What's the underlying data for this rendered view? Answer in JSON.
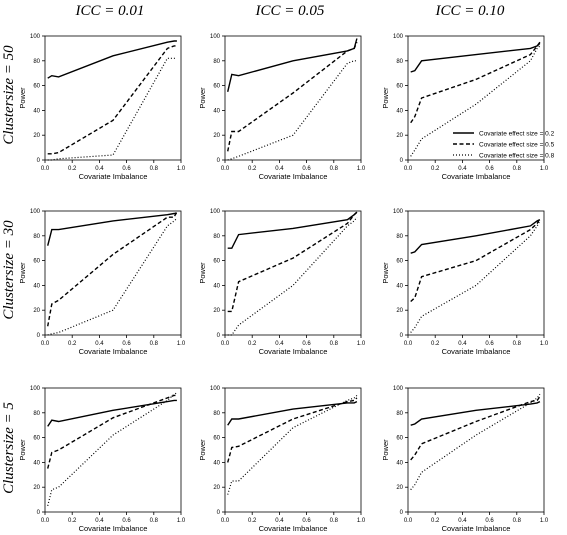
{
  "column_headers": [
    "ICC = 0.01",
    "ICC = 0.05",
    "ICC = 0.10"
  ],
  "row_headers": [
    "Clustersize = 50",
    "Clustersize = 30",
    "Clustersize = 5"
  ],
  "legend": {
    "placement": "bottom-right of top-right panel",
    "entries": [
      {
        "label": "Covariate effect size = 0.2",
        "style": "solid"
      },
      {
        "label": "Covariate effect size = 0.5",
        "style": "dashed"
      },
      {
        "label": "Covariate effect size = 0.8",
        "style": "dotted"
      }
    ]
  },
  "chart_data": [
    {
      "type": "line",
      "row": 0,
      "col": 0,
      "xlabel": "Covariate Imbalance",
      "ylabel": "Power",
      "xlim": [
        0,
        1
      ],
      "ylim": [
        0,
        100
      ],
      "xticks": [
        "0.0",
        "0.2",
        "0.4",
        "0.6",
        "0.8",
        "1.0"
      ],
      "yticks": [
        "0",
        "20",
        "40",
        "60",
        "80",
        "100"
      ],
      "series": [
        {
          "name": "Covariate effect size = 0.2",
          "x": [
            0.02,
            0.05,
            0.1,
            0.5,
            0.9,
            0.95,
            0.97
          ],
          "y": [
            66,
            68,
            67,
            84,
            95,
            96,
            96
          ]
        },
        {
          "name": "Covariate effect size = 0.5",
          "x": [
            0.02,
            0.05,
            0.1,
            0.5,
            0.9,
            0.95,
            0.97
          ],
          "y": [
            5,
            5,
            6,
            32,
            90,
            92,
            92
          ]
        },
        {
          "name": "Covariate effect size = 0.8",
          "x": [
            0.02,
            0.05,
            0.1,
            0.5,
            0.9,
            0.95,
            0.97
          ],
          "y": [
            0,
            0,
            1,
            4,
            82,
            82,
            82
          ]
        }
      ]
    },
    {
      "type": "line",
      "row": 0,
      "col": 1,
      "xlabel": "Covariate Imbalance",
      "ylabel": "Power",
      "xlim": [
        0,
        1
      ],
      "ylim": [
        0,
        100
      ],
      "xticks": [
        "0.0",
        "0.2",
        "0.4",
        "0.6",
        "0.8",
        "1.0"
      ],
      "yticks": [
        "0",
        "20",
        "40",
        "60",
        "80",
        "100"
      ],
      "series": [
        {
          "name": "Covariate effect size = 0.2",
          "x": [
            0.02,
            0.05,
            0.1,
            0.5,
            0.9,
            0.95,
            0.97
          ],
          "y": [
            55,
            69,
            68,
            80,
            88,
            90,
            98
          ]
        },
        {
          "name": "Covariate effect size = 0.5",
          "x": [
            0.02,
            0.05,
            0.1,
            0.5,
            0.9,
            0.95,
            0.97
          ],
          "y": [
            7,
            23,
            23,
            54,
            88,
            90,
            95
          ]
        },
        {
          "name": "Covariate effect size = 0.8",
          "x": [
            0.02,
            0.05,
            0.1,
            0.5,
            0.9,
            0.95,
            0.97
          ],
          "y": [
            0,
            1,
            3,
            20,
            78,
            80,
            80
          ]
        }
      ]
    },
    {
      "type": "line",
      "row": 0,
      "col": 2,
      "xlabel": "Covariate Imbalance",
      "ylabel": "Power",
      "xlim": [
        0,
        1
      ],
      "ylim": [
        0,
        100
      ],
      "xticks": [
        "0.0",
        "0.2",
        "0.4",
        "0.6",
        "0.8",
        "1.0"
      ],
      "yticks": [
        "0",
        "20",
        "40",
        "60",
        "80",
        "100"
      ],
      "series": [
        {
          "name": "Covariate effect size = 0.2",
          "x": [
            0.02,
            0.05,
            0.1,
            0.5,
            0.9,
            0.95,
            0.97
          ],
          "y": [
            71,
            72,
            80,
            85,
            90,
            92,
            95
          ]
        },
        {
          "name": "Covariate effect size = 0.5",
          "x": [
            0.02,
            0.05,
            0.1,
            0.5,
            0.9,
            0.95,
            0.97
          ],
          "y": [
            30,
            35,
            50,
            65,
            85,
            92,
            94
          ]
        },
        {
          "name": "Covariate effect size = 0.8",
          "x": [
            0.02,
            0.05,
            0.1,
            0.5,
            0.9,
            0.95,
            0.97
          ],
          "y": [
            3,
            8,
            17,
            45,
            80,
            90,
            92
          ]
        }
      ]
    },
    {
      "type": "line",
      "row": 1,
      "col": 0,
      "xlabel": "Covariate Imbalance",
      "ylabel": "Power",
      "xlim": [
        0,
        1
      ],
      "ylim": [
        0,
        100
      ],
      "xticks": [
        "0.0",
        "0.2",
        "0.4",
        "0.6",
        "0.8",
        "1.0"
      ],
      "yticks": [
        "0",
        "20",
        "40",
        "60",
        "80",
        "100"
      ],
      "series": [
        {
          "name": "Covariate effect size = 0.2",
          "x": [
            0.02,
            0.05,
            0.1,
            0.5,
            0.9,
            0.95,
            0.97
          ],
          "y": [
            72,
            85,
            85,
            92,
            97,
            98,
            98
          ]
        },
        {
          "name": "Covariate effect size = 0.5",
          "x": [
            0.02,
            0.05,
            0.1,
            0.5,
            0.9,
            0.95,
            0.97
          ],
          "y": [
            7,
            25,
            28,
            65,
            95,
            95,
            100
          ]
        },
        {
          "name": "Covariate effect size = 0.8",
          "x": [
            0.02,
            0.05,
            0.1,
            0.5,
            0.9,
            0.95,
            0.97
          ],
          "y": [
            0,
            1,
            2,
            20,
            88,
            92,
            94
          ]
        }
      ]
    },
    {
      "type": "line",
      "row": 1,
      "col": 1,
      "xlabel": "Covariate Imbalance",
      "ylabel": "Power",
      "xlim": [
        0,
        1
      ],
      "ylim": [
        0,
        100
      ],
      "xticks": [
        "0.0",
        "0.2",
        "0.4",
        "0.6",
        "0.8",
        "1.0"
      ],
      "yticks": [
        "0",
        "20",
        "40",
        "60",
        "80",
        "100"
      ],
      "series": [
        {
          "name": "Covariate effect size = 0.2",
          "x": [
            0.02,
            0.05,
            0.1,
            0.5,
            0.9,
            0.95,
            0.97
          ],
          "y": [
            70,
            70,
            81,
            86,
            93,
            97,
            99
          ]
        },
        {
          "name": "Covariate effect size = 0.5",
          "x": [
            0.02,
            0.05,
            0.1,
            0.5,
            0.9,
            0.95,
            0.97
          ],
          "y": [
            19,
            19,
            43,
            62,
            90,
            97,
            99
          ]
        },
        {
          "name": "Covariate effect size = 0.8",
          "x": [
            0.02,
            0.05,
            0.1,
            0.5,
            0.9,
            0.95,
            0.97
          ],
          "y": [
            0,
            0,
            8,
            40,
            88,
            92,
            95
          ]
        }
      ]
    },
    {
      "type": "line",
      "row": 1,
      "col": 2,
      "xlabel": "Covariate Imbalance",
      "ylabel": "Power",
      "xlim": [
        0,
        1
      ],
      "ylim": [
        0,
        100
      ],
      "xticks": [
        "0.0",
        "0.2",
        "0.4",
        "0.6",
        "0.8",
        "1.0"
      ],
      "yticks": [
        "0",
        "20",
        "40",
        "60",
        "80",
        "100"
      ],
      "series": [
        {
          "name": "Covariate effect size = 0.2",
          "x": [
            0.02,
            0.05,
            0.1,
            0.5,
            0.9,
            0.95,
            0.97
          ],
          "y": [
            66,
            67,
            73,
            80,
            88,
            92,
            93
          ]
        },
        {
          "name": "Covariate effect size = 0.5",
          "x": [
            0.02,
            0.05,
            0.1,
            0.5,
            0.9,
            0.95,
            0.97
          ],
          "y": [
            27,
            30,
            47,
            60,
            85,
            90,
            94
          ]
        },
        {
          "name": "Covariate effect size = 0.8",
          "x": [
            0.02,
            0.05,
            0.1,
            0.5,
            0.9,
            0.95,
            0.97
          ],
          "y": [
            2,
            6,
            15,
            40,
            80,
            88,
            92
          ]
        }
      ]
    },
    {
      "type": "line",
      "row": 2,
      "col": 0,
      "xlabel": "Covariate Imbalance",
      "ylabel": "Power",
      "xlim": [
        0,
        1
      ],
      "ylim": [
        0,
        100
      ],
      "xticks": [
        "0.0",
        "0.2",
        "0.4",
        "0.6",
        "0.8",
        "1.0"
      ],
      "yticks": [
        "0",
        "20",
        "40",
        "60",
        "80",
        "100"
      ],
      "series": [
        {
          "name": "Covariate effect size = 0.2",
          "x": [
            0.02,
            0.05,
            0.1,
            0.5,
            0.9,
            0.95,
            0.97
          ],
          "y": [
            69,
            74,
            73,
            82,
            89,
            90,
            90
          ]
        },
        {
          "name": "Covariate effect size = 0.5",
          "x": [
            0.02,
            0.05,
            0.1,
            0.5,
            0.9,
            0.95,
            0.97
          ],
          "y": [
            35,
            48,
            50,
            76,
            92,
            94,
            94
          ]
        },
        {
          "name": "Covariate effect size = 0.8",
          "x": [
            0.02,
            0.05,
            0.1,
            0.5,
            0.9,
            0.95,
            0.97
          ],
          "y": [
            5,
            18,
            20,
            62,
            90,
            95,
            96
          ]
        }
      ]
    },
    {
      "type": "line",
      "row": 2,
      "col": 1,
      "xlabel": "Covariate Imbalance",
      "ylabel": "Power",
      "xlim": [
        0,
        1
      ],
      "ylim": [
        0,
        100
      ],
      "xticks": [
        "0.0",
        "0.2",
        "0.4",
        "0.6",
        "0.8",
        "1.0"
      ],
      "yticks": [
        "0",
        "20",
        "40",
        "60",
        "80",
        "100"
      ],
      "series": [
        {
          "name": "Covariate effect size = 0.2",
          "x": [
            0.02,
            0.05,
            0.1,
            0.5,
            0.9,
            0.95,
            0.97
          ],
          "y": [
            70,
            75,
            75,
            83,
            88,
            88,
            89
          ]
        },
        {
          "name": "Covariate effect size = 0.5",
          "x": [
            0.02,
            0.05,
            0.1,
            0.5,
            0.9,
            0.95,
            0.97
          ],
          "y": [
            40,
            52,
            53,
            75,
            89,
            90,
            92
          ]
        },
        {
          "name": "Covariate effect size = 0.8",
          "x": [
            0.02,
            0.05,
            0.1,
            0.5,
            0.9,
            0.95,
            0.97
          ],
          "y": [
            14,
            25,
            25,
            68,
            90,
            92,
            94
          ]
        }
      ]
    },
    {
      "type": "line",
      "row": 2,
      "col": 2,
      "xlabel": "Covariate Imbalance",
      "ylabel": "Power",
      "xlim": [
        0,
        1
      ],
      "ylim": [
        0,
        100
      ],
      "xticks": [
        "0.0",
        "0.2",
        "0.4",
        "0.6",
        "0.8",
        "1.0"
      ],
      "yticks": [
        "0",
        "20",
        "40",
        "60",
        "80",
        "100"
      ],
      "series": [
        {
          "name": "Covariate effect size = 0.2",
          "x": [
            0.02,
            0.05,
            0.1,
            0.5,
            0.9,
            0.95,
            0.97
          ],
          "y": [
            70,
            71,
            75,
            82,
            87,
            88,
            89
          ]
        },
        {
          "name": "Covariate effect size = 0.5",
          "x": [
            0.02,
            0.05,
            0.1,
            0.5,
            0.9,
            0.95,
            0.97
          ],
          "y": [
            42,
            46,
            55,
            73,
            89,
            90,
            93
          ]
        },
        {
          "name": "Covariate effect size = 0.8",
          "x": [
            0.02,
            0.05,
            0.1,
            0.5,
            0.9,
            0.95,
            0.97
          ],
          "y": [
            18,
            22,
            32,
            62,
            88,
            92,
            95
          ]
        }
      ]
    }
  ]
}
